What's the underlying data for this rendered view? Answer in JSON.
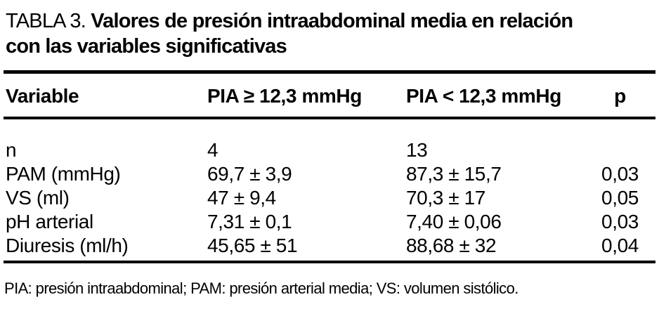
{
  "table": {
    "title": {
      "prefix": "TABLA 3.",
      "bold_line1": "Valores de presión intraabdominal media en relación",
      "bold_line2": "con las variables significativas"
    },
    "columns": {
      "variable": "Variable",
      "group_high": "PIA ≥ 12,3 mmHg",
      "group_low": "PIA < 12,3 mmHg",
      "p": "p"
    },
    "rows": [
      {
        "variable": "n",
        "group_high": "4",
        "group_low": "13",
        "p": ""
      },
      {
        "variable": "PAM (mmHg)",
        "group_high": "69,7 ± 3,9",
        "group_low": "87,3 ± 15,7",
        "p": "0,03"
      },
      {
        "variable": "VS (ml)",
        "group_high": "47 ± 9,4",
        "group_low": "70,3 ± 17",
        "p": "0,05"
      },
      {
        "variable": "pH arterial",
        "group_high": "7,31 ± 0,1",
        "group_low": "7,40 ± 0,06",
        "p": "0,03"
      },
      {
        "variable": "Diuresis (ml/h)",
        "group_high": "45,65 ± 51",
        "group_low": "88,68 ± 32",
        "p": "0,04"
      }
    ],
    "footnote": "PIA: presión intraabdominal; PAM: presión arterial media; VS: volumen sistólico.",
    "colors": {
      "text": "#000000",
      "background": "#ffffff",
      "rule": "#000000"
    }
  }
}
